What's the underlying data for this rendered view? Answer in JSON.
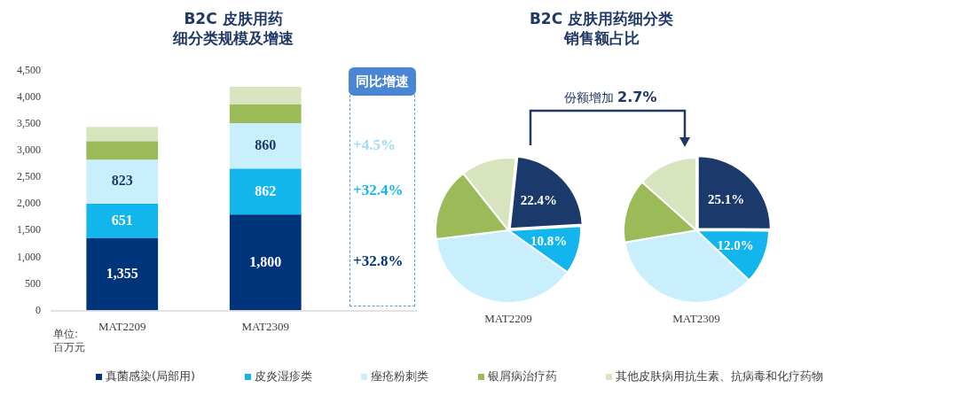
{
  "chart_data": [
    {
      "type": "bar",
      "title": "B2C 皮肤用药",
      "subtitle": "细分类规模及增速",
      "categories": [
        "MAT2209",
        "MAT2309"
      ],
      "stacked": true,
      "series": [
        {
          "name": "真菌感染(局部用)",
          "color": "#00347a",
          "values": [
            1355,
            1800
          ],
          "value_labels": [
            "1,355",
            "1,800"
          ]
        },
        {
          "name": "皮炎湿疹类",
          "color": "#12b6ec",
          "values": [
            651,
            862
          ],
          "value_labels": [
            "651",
            "862"
          ]
        },
        {
          "name": "痤疮粉刺类",
          "color": "#c9eefc",
          "values": [
            823,
            860
          ],
          "value_labels": [
            "823",
            "860"
          ]
        },
        {
          "name": "银屑病治疗药",
          "color": "#9bbb59",
          "values": [
            350,
            350
          ]
        },
        {
          "name": "其他皮肤病用抗生素、抗病毒和化疗药物",
          "color": "#d7e4bd",
          "values": [
            270,
            330
          ]
        }
      ],
      "ylim": [
        0,
        4500
      ],
      "yticks": [
        0,
        500,
        {
          "value": 1000,
          "label": "1,000"
        },
        {
          "value": 1500,
          "label": "1,500"
        },
        {
          "value": 2000,
          "label": "2,000"
        },
        {
          "value": 2500,
          "label": "2,500"
        },
        {
          "value": 3000,
          "label": "3,000"
        },
        {
          "value": 3500,
          "label": "3,500"
        },
        {
          "value": 4000,
          "label": "4,000"
        },
        {
          "value": 4500,
          "label": "4,500"
        }
      ],
      "grid": false,
      "legend": "bottom",
      "annotations": [
        "同比增速",
        "+4.5%",
        "+32.4%",
        "+32.8%",
        "单位:百万元"
      ]
    },
    {
      "type": "pie",
      "title": "B2C 皮肤用药细分类",
      "subtitle": "销售额占比",
      "xlabel": "MAT2209",
      "categories": [
        null,
        null,
        null,
        null,
        null
      ],
      "values": [
        22.4,
        10.8,
        38.2,
        16.3,
        12.3
      ],
      "colors": [
        "#1b3a6b",
        "#12b6ec",
        "#c9eefc",
        "#9bbb59",
        "#d7e4bd"
      ],
      "value_labels": [
        "22.4%",
        "10.8%",
        null,
        null,
        null
      ]
    },
    {
      "type": "pie",
      "xlabel": "MAT2309",
      "categories": [
        null,
        null,
        null,
        null,
        null
      ],
      "values": [
        25.1,
        12.0,
        35.2,
        14.3,
        13.4
      ],
      "colors": [
        "#1b3a6b",
        "#12b6ec",
        "#c9eefc",
        "#9bbb59",
        "#d7e4bd"
      ],
      "value_labels": [
        "25.1%",
        "12.0%",
        null,
        null,
        null
      ],
      "annotations": [
        "份额增加 2.7%"
      ]
    }
  ]
}
